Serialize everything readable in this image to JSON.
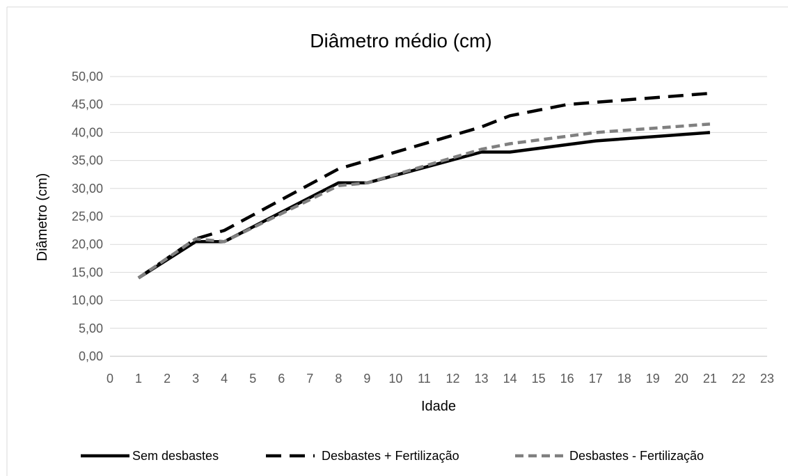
{
  "chart_data": {
    "type": "line",
    "title": "Diâmetro médio (cm)",
    "xlabel": "Idade",
    "ylabel": "Diâmetro (cm)",
    "xlim": [
      0,
      23
    ],
    "ylim": [
      0,
      50
    ],
    "x_ticks": [
      "0",
      "1",
      "2",
      "3",
      "4",
      "5",
      "6",
      "7",
      "8",
      "9",
      "10",
      "11",
      "12",
      "13",
      "14",
      "15",
      "16",
      "17",
      "18",
      "19",
      "20",
      "21",
      "22",
      "23"
    ],
    "y_ticks": [
      "0,00",
      "5,00",
      "10,00",
      "15,00",
      "20,00",
      "25,00",
      "30,00",
      "35,00",
      "40,00",
      "45,00",
      "50,00"
    ],
    "grid": "horizontal",
    "legend_position": "bottom",
    "series": [
      {
        "name": "Sem desbastes",
        "color": "#000000",
        "dash": "solid",
        "x": [
          1,
          3,
          4,
          8,
          9,
          13,
          14,
          17,
          21
        ],
        "y": [
          14.0,
          20.5,
          20.5,
          31.0,
          31.0,
          36.5,
          36.5,
          38.5,
          40.0
        ]
      },
      {
        "name": "Desbastes + Fertilização",
        "color": "#000000",
        "dash": "long-dash",
        "x": [
          1,
          3,
          4,
          8,
          9,
          13,
          14,
          16,
          21
        ],
        "y": [
          14.0,
          21.0,
          22.5,
          33.5,
          35.0,
          41.0,
          43.0,
          45.0,
          47.0
        ]
      },
      {
        "name": "Desbastes - Fertilização",
        "color": "#808080",
        "dash": "short-dash",
        "x": [
          1,
          3,
          4,
          8,
          9,
          13,
          14,
          17,
          21
        ],
        "y": [
          14.0,
          21.0,
          20.5,
          30.5,
          31.0,
          37.0,
          38.0,
          40.0,
          41.5
        ]
      }
    ]
  }
}
